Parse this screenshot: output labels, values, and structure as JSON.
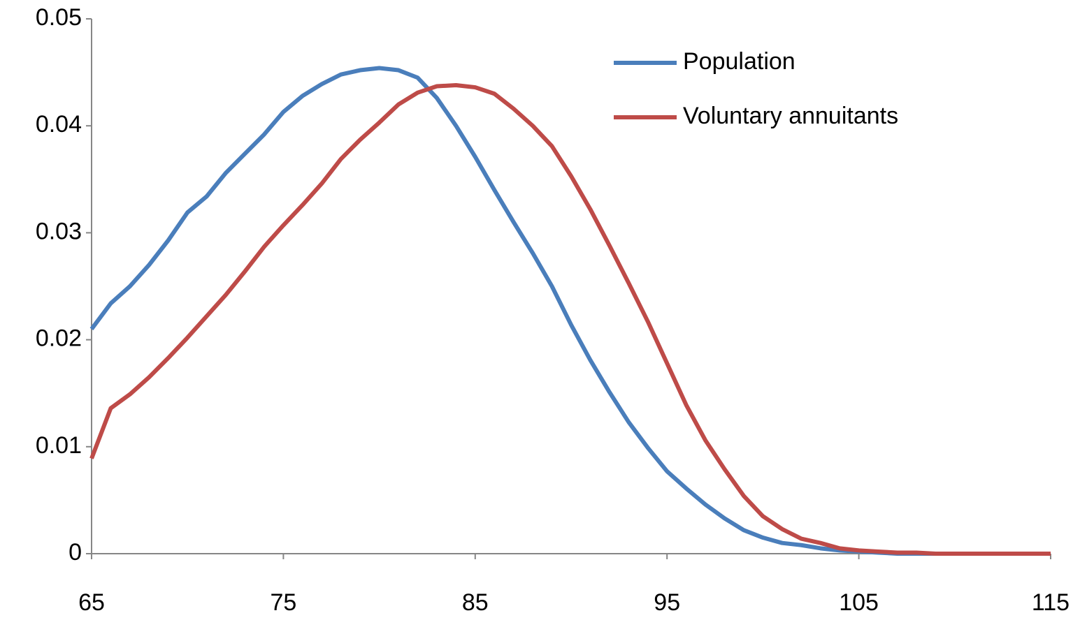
{
  "chart_data": {
    "type": "line",
    "x": [
      65,
      66,
      67,
      68,
      69,
      70,
      71,
      72,
      73,
      74,
      75,
      76,
      77,
      78,
      79,
      80,
      81,
      82,
      83,
      84,
      85,
      86,
      87,
      88,
      89,
      90,
      91,
      92,
      93,
      94,
      95,
      96,
      97,
      98,
      99,
      100,
      101,
      102,
      103,
      104,
      105,
      106,
      107,
      108,
      109,
      110,
      111,
      112,
      113,
      114,
      115
    ],
    "series": [
      {
        "name": "Population",
        "color": "#4a7ebb",
        "values": [
          0.021,
          0.0234,
          0.025,
          0.027,
          0.0293,
          0.0319,
          0.0334,
          0.0356,
          0.0374,
          0.0392,
          0.0413,
          0.0428,
          0.0439,
          0.0448,
          0.0452,
          0.0454,
          0.0452,
          0.0445,
          0.0426,
          0.04,
          0.0371,
          0.034,
          0.031,
          0.0281,
          0.025,
          0.0214,
          0.0181,
          0.0151,
          0.0123,
          0.0099,
          0.0077,
          0.0061,
          0.0046,
          0.0033,
          0.0022,
          0.0015,
          0.001,
          0.0008,
          0.0005,
          0.0003,
          0.0002,
          0.0001,
          0,
          0,
          0,
          0,
          0,
          0,
          0,
          0,
          0
        ]
      },
      {
        "name": "Voluntary annuitants",
        "color": "#be4b48",
        "values": [
          0.0089,
          0.0136,
          0.0149,
          0.0165,
          0.0183,
          0.0202,
          0.0222,
          0.0242,
          0.0264,
          0.0287,
          0.0307,
          0.0326,
          0.0346,
          0.0369,
          0.0387,
          0.0403,
          0.042,
          0.0431,
          0.0437,
          0.0438,
          0.0436,
          0.043,
          0.0416,
          0.04,
          0.0381,
          0.0353,
          0.0322,
          0.0288,
          0.0253,
          0.0217,
          0.0178,
          0.0139,
          0.0106,
          0.0079,
          0.0054,
          0.0035,
          0.0023,
          0.0014,
          0.001,
          0.0005,
          0.0003,
          0.0002,
          0.0001,
          0.0001,
          0,
          0,
          0,
          0,
          0,
          0,
          0
        ]
      }
    ],
    "xlim": [
      65,
      115
    ],
    "xticks": [
      65,
      75,
      85,
      95,
      105,
      115
    ],
    "ylim": [
      0,
      0.05
    ],
    "yticks": [
      0,
      0.01,
      0.02,
      0.03,
      0.04,
      0.05
    ],
    "legend": "upper-right",
    "grid": false
  }
}
